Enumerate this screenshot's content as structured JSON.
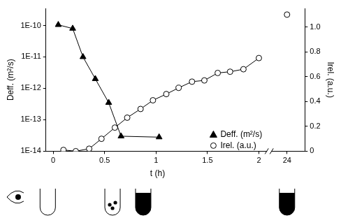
{
  "chart_data": {
    "type": "line",
    "x_label": "t (h)",
    "y_label": "Deff. (m²/s)",
    "y2_label": "Irel. (a.u.)",
    "series": [
      {
        "name": "Deff. (m²/s)",
        "color": "#000000",
        "marker": "triangle",
        "line_style": "solid",
        "x": [
          0.05,
          0.19,
          0.29,
          0.41,
          0.54,
          0.66,
          1.03
        ],
        "values": [
          1.05e-10,
          8e-11,
          1e-11,
          2e-12,
          3.5e-13,
          3e-14,
          2.8e-14
        ]
      },
      {
        "name": "Irel. (a.u.)",
        "color": "#000000",
        "marker": "circle",
        "line_style": "solid",
        "axis": "y2",
        "x": [
          0.1,
          0.22,
          0.35,
          0.47,
          0.6,
          0.72,
          0.85,
          0.97,
          1.1,
          1.22,
          1.35,
          1.47,
          1.6,
          1.72,
          1.85,
          2.0,
          24
        ],
        "values": [
          0.01,
          0,
          0.02,
          0.1,
          0.19,
          0.27,
          0.34,
          0.41,
          0.46,
          0.51,
          0.56,
          0.57,
          0.63,
          0.64,
          0.66,
          0.75,
          1.1
        ]
      }
    ],
    "xlim": [
      -0.07,
      24.1
    ],
    "xticks": [
      0,
      0.5,
      1,
      1.5,
      2,
      24
    ],
    "ylim": [
      1e-14,
      3.5e-10
    ],
    "yticks": [
      {
        "value": 1e-14,
        "label": "1E-14"
      },
      {
        "value": 1e-13,
        "label": "1E-13"
      },
      {
        "value": 1e-12,
        "label": "1E-12"
      },
      {
        "value": 1e-11,
        "label": "1E-11"
      },
      {
        "value": 1e-10,
        "label": "1E-10"
      }
    ],
    "y2lim": [
      0,
      1.15
    ],
    "y2ticks": [
      0,
      0.2,
      0.4,
      0.6,
      0.8,
      {
        "value": 1,
        "label": "1.0"
      }
    ],
    "log": "y",
    "grid": false,
    "legend": "lower right"
  }
}
